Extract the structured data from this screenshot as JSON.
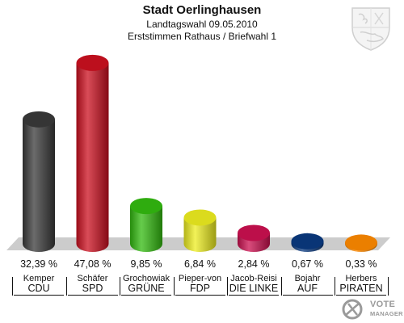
{
  "header": {
    "title": "Stadt Oerlinghausen",
    "subtitle1": "Landtagswahl 09.05.2010",
    "subtitle2": "Erststimmen Rathaus / Briefwahl 1"
  },
  "watermark": {
    "line1": "VOTE",
    "line2": "MANAGER"
  },
  "chart_data": {
    "type": "bar",
    "title": "Stadt Oerlinghausen",
    "ylim": [
      0,
      50
    ],
    "grid": false,
    "categories": [
      "CDU",
      "SPD",
      "GRÜNE",
      "FDP",
      "DIE LINKE",
      "AUF",
      "PIRATEN"
    ],
    "candidates": [
      "Kemper",
      "Schäfer",
      "Grochowiak",
      "Pieper-von",
      "Jacob-Reisi",
      "Bojahr",
      "Herbers"
    ],
    "values": [
      32.39,
      47.08,
      9.85,
      6.84,
      2.84,
      0.67,
      0.33
    ],
    "labels": [
      "32,39 %",
      "47,08 %",
      "9,85 %",
      "6,84 %",
      "2,84 %",
      "0,67 %",
      "0,33 %"
    ],
    "colors": [
      "#3a3a3a",
      "#cc1020",
      "#33bb10",
      "#eeee20",
      "#cc1050",
      "#0a3a80",
      "#ff8a00"
    ]
  }
}
